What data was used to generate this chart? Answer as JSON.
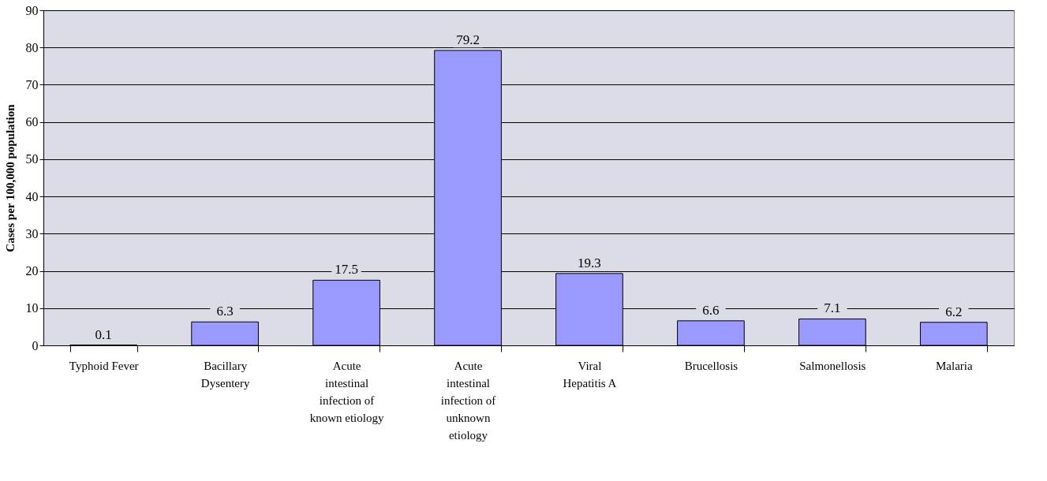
{
  "chart_data": {
    "type": "bar",
    "ylabel": "Cases per 100,000 population",
    "categories": [
      "Typhoid Fever",
      "Bacillary Dysentery",
      "Acute intestinal infection of known etiology",
      "Acute intestinal infection of unknown etiology",
      "Viral Hepatitis A",
      "Brucellosis",
      "Salmonellosis",
      "Malaria"
    ],
    "values": [
      0.1,
      6.3,
      17.5,
      79.2,
      19.3,
      6.6,
      7.1,
      6.2
    ],
    "color": "#9999ff",
    "ylim": [
      0,
      90
    ],
    "yticks": [
      0,
      10,
      20,
      30,
      40,
      50,
      60,
      70,
      80,
      90
    ],
    "grid": "y",
    "data_labels": true
  }
}
